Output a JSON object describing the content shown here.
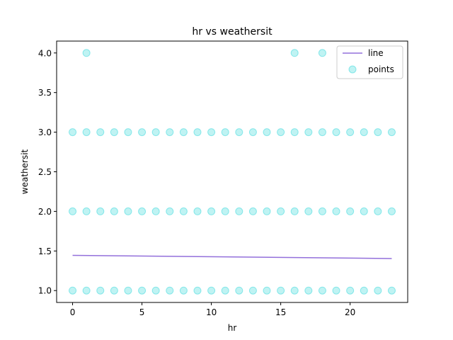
{
  "chart_data": {
    "type": "scatter",
    "title": "hr vs weathersit",
    "xlabel": "hr",
    "ylabel": "weathersit",
    "xlim": [
      -1.15,
      24.15
    ],
    "ylim": [
      0.85,
      4.15
    ],
    "xticks": [
      0,
      5,
      10,
      15,
      20
    ],
    "yticks": [
      1.0,
      1.5,
      2.0,
      2.5,
      3.0,
      3.5,
      4.0
    ],
    "xtick_labels": [
      "0",
      "5",
      "10",
      "15",
      "20"
    ],
    "ytick_labels": [
      "1.0",
      "1.5",
      "2.0",
      "2.5",
      "3.0",
      "3.5",
      "4.0"
    ],
    "grid": false,
    "legend_position": "top-right",
    "series": [
      {
        "name": "line",
        "kind": "line",
        "color": "#9370db",
        "x": [
          0,
          23
        ],
        "y": [
          1.445,
          1.405
        ]
      },
      {
        "name": "points",
        "kind": "scatter",
        "color": "#00ced1",
        "opacity": 0.25,
        "points": [
          [
            0,
            1
          ],
          [
            1,
            1
          ],
          [
            2,
            1
          ],
          [
            3,
            1
          ],
          [
            4,
            1
          ],
          [
            5,
            1
          ],
          [
            6,
            1
          ],
          [
            7,
            1
          ],
          [
            8,
            1
          ],
          [
            9,
            1
          ],
          [
            10,
            1
          ],
          [
            11,
            1
          ],
          [
            12,
            1
          ],
          [
            13,
            1
          ],
          [
            14,
            1
          ],
          [
            15,
            1
          ],
          [
            16,
            1
          ],
          [
            17,
            1
          ],
          [
            18,
            1
          ],
          [
            19,
            1
          ],
          [
            20,
            1
          ],
          [
            21,
            1
          ],
          [
            22,
            1
          ],
          [
            23,
            1
          ],
          [
            0,
            2
          ],
          [
            1,
            2
          ],
          [
            2,
            2
          ],
          [
            3,
            2
          ],
          [
            4,
            2
          ],
          [
            5,
            2
          ],
          [
            6,
            2
          ],
          [
            7,
            2
          ],
          [
            8,
            2
          ],
          [
            9,
            2
          ],
          [
            10,
            2
          ],
          [
            11,
            2
          ],
          [
            12,
            2
          ],
          [
            13,
            2
          ],
          [
            14,
            2
          ],
          [
            15,
            2
          ],
          [
            16,
            2
          ],
          [
            17,
            2
          ],
          [
            18,
            2
          ],
          [
            19,
            2
          ],
          [
            20,
            2
          ],
          [
            21,
            2
          ],
          [
            22,
            2
          ],
          [
            23,
            2
          ],
          [
            0,
            3
          ],
          [
            1,
            3
          ],
          [
            2,
            3
          ],
          [
            3,
            3
          ],
          [
            4,
            3
          ],
          [
            5,
            3
          ],
          [
            6,
            3
          ],
          [
            7,
            3
          ],
          [
            8,
            3
          ],
          [
            9,
            3
          ],
          [
            10,
            3
          ],
          [
            11,
            3
          ],
          [
            12,
            3
          ],
          [
            13,
            3
          ],
          [
            14,
            3
          ],
          [
            15,
            3
          ],
          [
            16,
            3
          ],
          [
            17,
            3
          ],
          [
            18,
            3
          ],
          [
            19,
            3
          ],
          [
            20,
            3
          ],
          [
            21,
            3
          ],
          [
            22,
            3
          ],
          [
            23,
            3
          ],
          [
            1,
            4
          ],
          [
            16,
            4
          ],
          [
            18,
            4
          ]
        ]
      }
    ]
  }
}
